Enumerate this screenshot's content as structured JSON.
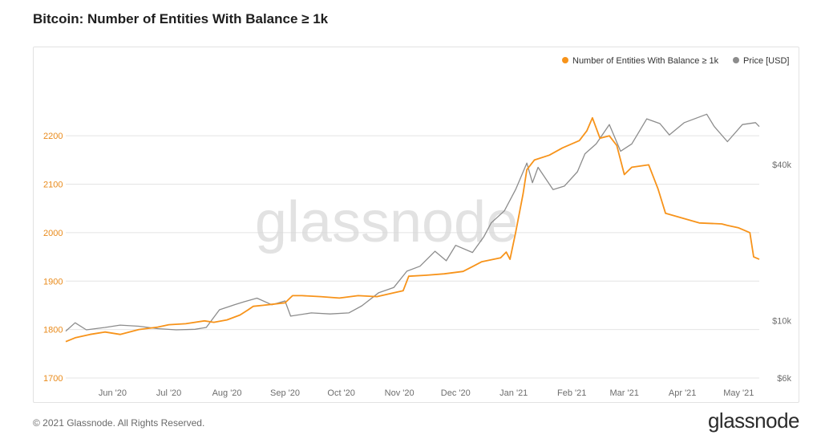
{
  "header": {
    "title": "Bitcoin: Number of Entities With Balance ≥ 1k"
  },
  "footer": {
    "copyright": "© 2021 Glassnode. All Rights Reserved.",
    "brand": "glassnode"
  },
  "watermark": "glassnode",
  "colors": {
    "entities": "#f7931a",
    "price": "#8c8c8c",
    "grid": "#e4e4e4",
    "axis_text": "#6d6d6d",
    "left_axis_text": "#e98a1a"
  },
  "chart_data": {
    "type": "line",
    "title": "Bitcoin: Number of Entities With Balance ≥ 1k",
    "legend_position": "top-right",
    "grid": true,
    "x_ticks": [
      "Jun '20",
      "Jul '20",
      "Aug '20",
      "Sep '20",
      "Oct '20",
      "Nov '20",
      "Dec '20",
      "Jan '21",
      "Feb '21",
      "Mar '21",
      "Apr '21",
      "May '21"
    ],
    "x_range": [
      "2020-05-07",
      "2021-05-12"
    ],
    "y_left": {
      "ticks": [
        1700,
        1800,
        1900,
        2000,
        2100,
        2200
      ],
      "range": [
        1700,
        2250
      ]
    },
    "y_right": {
      "scale": "log",
      "ticks": [
        6000,
        10000,
        40000
      ],
      "tick_labels": [
        "$6k",
        "$10k",
        "$40k"
      ],
      "range": [
        6000,
        64000
      ]
    },
    "series": [
      {
        "name": "Number of Entities With Balance ≥ 1k",
        "axis": "left",
        "color": "#f7931a",
        "points": [
          [
            "2020-05-07",
            1775
          ],
          [
            "2020-05-12",
            1783
          ],
          [
            "2020-05-20",
            1790
          ],
          [
            "2020-05-28",
            1795
          ],
          [
            "2020-06-05",
            1790
          ],
          [
            "2020-06-15",
            1800
          ],
          [
            "2020-06-25",
            1805
          ],
          [
            "2020-07-01",
            1810
          ],
          [
            "2020-07-10",
            1812
          ],
          [
            "2020-07-20",
            1818
          ],
          [
            "2020-07-25",
            1815
          ],
          [
            "2020-08-01",
            1820
          ],
          [
            "2020-08-08",
            1830
          ],
          [
            "2020-08-12",
            1840
          ],
          [
            "2020-08-15",
            1848
          ],
          [
            "2020-08-20",
            1850
          ],
          [
            "2020-08-25",
            1852
          ],
          [
            "2020-09-01",
            1855
          ],
          [
            "2020-09-05",
            1870
          ],
          [
            "2020-09-10",
            1870
          ],
          [
            "2020-09-20",
            1868
          ],
          [
            "2020-09-30",
            1865
          ],
          [
            "2020-10-10",
            1870
          ],
          [
            "2020-10-20",
            1868
          ],
          [
            "2020-10-28",
            1875
          ],
          [
            "2020-11-03",
            1880
          ],
          [
            "2020-11-06",
            1910
          ],
          [
            "2020-11-15",
            1912
          ],
          [
            "2020-11-25",
            1915
          ],
          [
            "2020-12-05",
            1920
          ],
          [
            "2020-12-10",
            1930
          ],
          [
            "2020-12-15",
            1940
          ],
          [
            "2020-12-25",
            1948
          ],
          [
            "2020-12-28",
            1960
          ],
          [
            "2020-12-30",
            1945
          ],
          [
            "2021-01-02",
            2000
          ],
          [
            "2021-01-06",
            2080
          ],
          [
            "2021-01-08",
            2130
          ],
          [
            "2021-01-12",
            2150
          ],
          [
            "2021-01-20",
            2160
          ],
          [
            "2021-01-27",
            2175
          ],
          [
            "2021-02-05",
            2190
          ],
          [
            "2021-02-09",
            2210
          ],
          [
            "2021-02-12",
            2237
          ],
          [
            "2021-02-16",
            2195
          ],
          [
            "2021-02-21",
            2200
          ],
          [
            "2021-02-25",
            2180
          ],
          [
            "2021-03-01",
            2120
          ],
          [
            "2021-03-05",
            2135
          ],
          [
            "2021-03-14",
            2140
          ],
          [
            "2021-03-19",
            2090
          ],
          [
            "2021-03-23",
            2040
          ],
          [
            "2021-04-01",
            2030
          ],
          [
            "2021-04-10",
            2020
          ],
          [
            "2021-04-22",
            2018
          ],
          [
            "2021-04-25",
            2015
          ],
          [
            "2021-05-01",
            2010
          ],
          [
            "2021-05-07",
            2000
          ],
          [
            "2021-05-09",
            1950
          ],
          [
            "2021-05-12",
            1945
          ]
        ]
      },
      {
        "name": "Price [USD]",
        "axis": "right",
        "color": "#8c8c8c",
        "points": [
          [
            "2020-05-07",
            9100
          ],
          [
            "2020-05-12",
            9800
          ],
          [
            "2020-05-18",
            9200
          ],
          [
            "2020-05-28",
            9400
          ],
          [
            "2020-06-05",
            9600
          ],
          [
            "2020-06-15",
            9500
          ],
          [
            "2020-06-25",
            9300
          ],
          [
            "2020-07-05",
            9200
          ],
          [
            "2020-07-15",
            9250
          ],
          [
            "2020-07-21",
            9400
          ],
          [
            "2020-07-28",
            11000
          ],
          [
            "2020-08-05",
            11500
          ],
          [
            "2020-08-10",
            11800
          ],
          [
            "2020-08-17",
            12200
          ],
          [
            "2020-08-25",
            11500
          ],
          [
            "2020-09-01",
            11900
          ],
          [
            "2020-09-04",
            10400
          ],
          [
            "2020-09-15",
            10700
          ],
          [
            "2020-09-25",
            10600
          ],
          [
            "2020-10-05",
            10700
          ],
          [
            "2020-10-12",
            11400
          ],
          [
            "2020-10-21",
            12800
          ],
          [
            "2020-10-29",
            13400
          ],
          [
            "2020-11-05",
            15500
          ],
          [
            "2020-11-12",
            16200
          ],
          [
            "2020-11-20",
            18500
          ],
          [
            "2020-11-26",
            17000
          ],
          [
            "2020-12-01",
            19500
          ],
          [
            "2020-12-10",
            18300
          ],
          [
            "2020-12-16",
            21000
          ],
          [
            "2020-12-20",
            23800
          ],
          [
            "2020-12-27",
            26500
          ],
          [
            "2021-01-02",
            32000
          ],
          [
            "2021-01-08",
            40500
          ],
          [
            "2021-01-11",
            34000
          ],
          [
            "2021-01-14",
            39000
          ],
          [
            "2021-01-22",
            32000
          ],
          [
            "2021-01-28",
            33000
          ],
          [
            "2021-02-04",
            37500
          ],
          [
            "2021-02-08",
            44000
          ],
          [
            "2021-02-14",
            48000
          ],
          [
            "2021-02-21",
            57000
          ],
          [
            "2021-02-27",
            45000
          ],
          [
            "2021-03-05",
            48000
          ],
          [
            "2021-03-13",
            60000
          ],
          [
            "2021-03-20",
            57500
          ],
          [
            "2021-03-25",
            52000
          ],
          [
            "2021-04-02",
            58000
          ],
          [
            "2021-04-14",
            62500
          ],
          [
            "2021-04-18",
            56000
          ],
          [
            "2021-04-25",
            49000
          ],
          [
            "2021-05-03",
            57000
          ],
          [
            "2021-05-10",
            58000
          ],
          [
            "2021-05-12",
            56000
          ]
        ]
      }
    ]
  }
}
